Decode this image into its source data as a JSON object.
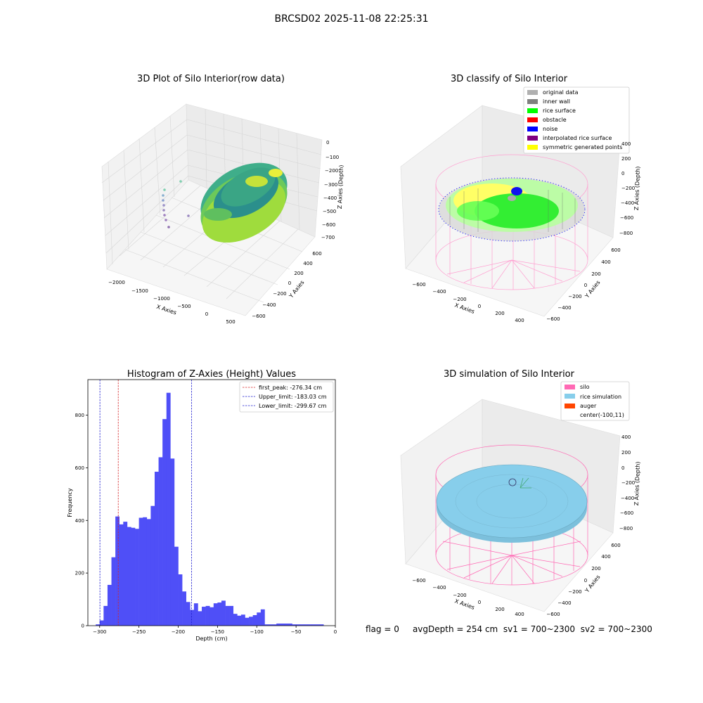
{
  "suptitle": "BRCSD02 2025-11-08 22:25:31",
  "status": {
    "flag": "flag = 0",
    "avg": "avgDepth = 254 cm",
    "sv1": "sv1 = 700~2300",
    "sv2": "sv2 = 700~2300"
  },
  "colors": {
    "bar": "#4f4ff7",
    "first_peak_line": "#d62728",
    "limit_line": "#1f1fd0",
    "silo": "#ff69b4",
    "rice_sim": "#87ceeb",
    "auger": "#ff4500",
    "rice_surface": "#00ff00",
    "noise": "#0000ff",
    "sym_points": "#ffff00",
    "inner_wall": "#808080",
    "original": "#b0b0b0",
    "obstacle": "#ff0000",
    "interp": "#800080"
  },
  "chart_data": [
    {
      "type": "scatter",
      "subtype": "3d",
      "title": "3D Plot of Silo Interior(row data)",
      "xlabel": "X Axies",
      "ylabel": "Y Axies",
      "zlabel": "Z Axies (Depth)",
      "x_ticks": [
        "−2000",
        "−1500",
        "−1000",
        "−500",
        "0",
        "500"
      ],
      "y_ticks": [
        "−600",
        "−400",
        "−200",
        "0",
        "200",
        "400",
        "600"
      ],
      "z_ticks": [
        "0",
        "−100",
        "−200",
        "−300",
        "−400",
        "−500",
        "−600",
        "−700"
      ]
    },
    {
      "type": "scatter",
      "subtype": "3d",
      "title": "3D classify of Silo Interior",
      "xlabel": "X Axies",
      "ylabel": "Y Axies",
      "zlabel": "Z Axies (Depth)",
      "x_ticks": [
        "−600",
        "−400",
        "−200",
        "0",
        "200",
        "400"
      ],
      "y_ticks": [
        "−600",
        "−400",
        "−200",
        "0",
        "200",
        "400",
        "600"
      ],
      "z_ticks": [
        "400",
        "200",
        "0",
        "−200",
        "−400",
        "−600",
        "−800"
      ],
      "legend": [
        "original data",
        "inner wall",
        "rice surface",
        "obstacle",
        "noise",
        "interpolated rice surface",
        "symmetric generated points"
      ],
      "legend_position": "top-right"
    },
    {
      "type": "bar",
      "subtype": "histogram",
      "title": "Histogram of Z-Axies (Height) Values",
      "xlabel": "Depth (cm)",
      "ylabel": "Frequency",
      "xlim": [
        -315,
        0
      ],
      "ylim": [
        0,
        935
      ],
      "x_ticks": [
        -300,
        -250,
        -200,
        -150,
        -100,
        -50,
        0
      ],
      "x_tick_labels": [
        "−300",
        "−250",
        "−200",
        "−150",
        "−100",
        "−50",
        "0"
      ],
      "y_ticks": [
        0,
        200,
        400,
        600,
        800
      ],
      "y_tick_labels": [
        "0",
        "200",
        "400",
        "600",
        "800"
      ],
      "bins": [
        [
          -305,
          -300,
          5
        ],
        [
          -300,
          -295,
          20
        ],
        [
          -295,
          -290,
          75
        ],
        [
          -290,
          -285,
          155
        ],
        [
          -285,
          -280,
          260
        ],
        [
          -280,
          -275,
          415
        ],
        [
          -275,
          -270,
          385
        ],
        [
          -270,
          -265,
          395
        ],
        [
          -265,
          -260,
          375
        ],
        [
          -260,
          -255,
          372
        ],
        [
          -255,
          -250,
          368
        ],
        [
          -250,
          -245,
          410
        ],
        [
          -245,
          -240,
          412
        ],
        [
          -240,
          -235,
          405
        ],
        [
          -235,
          -230,
          455
        ],
        [
          -230,
          -225,
          585
        ],
        [
          -225,
          -220,
          640
        ],
        [
          -220,
          -215,
          785
        ],
        [
          -215,
          -210,
          885
        ],
        [
          -210,
          -205,
          635
        ],
        [
          -205,
          -200,
          300
        ],
        [
          -200,
          -195,
          195
        ],
        [
          -195,
          -190,
          130
        ],
        [
          -190,
          -185,
          90
        ],
        [
          -185,
          -180,
          60
        ],
        [
          -180,
          -175,
          85
        ],
        [
          -175,
          -170,
          55
        ],
        [
          -170,
          -165,
          72
        ],
        [
          -165,
          -160,
          75
        ],
        [
          -160,
          -155,
          70
        ],
        [
          -155,
          -150,
          85
        ],
        [
          -150,
          -145,
          88
        ],
        [
          -145,
          -140,
          95
        ],
        [
          -140,
          -135,
          75
        ],
        [
          -135,
          -130,
          75
        ],
        [
          -130,
          -125,
          45
        ],
        [
          -125,
          -120,
          38
        ],
        [
          -120,
          -115,
          42
        ],
        [
          -115,
          -110,
          30
        ],
        [
          -110,
          -105,
          34
        ],
        [
          -105,
          -100,
          40
        ],
        [
          -100,
          -95,
          50
        ],
        [
          -95,
          -90,
          62
        ],
        [
          -90,
          -85,
          5
        ],
        [
          -85,
          -80,
          5
        ],
        [
          -80,
          -75,
          5
        ],
        [
          -75,
          -70,
          8
        ],
        [
          -70,
          -65,
          8
        ],
        [
          -65,
          -60,
          8
        ],
        [
          -60,
          -55,
          8
        ],
        [
          -55,
          -50,
          5
        ],
        [
          -50,
          -45,
          5
        ],
        [
          -45,
          -40,
          5
        ],
        [
          -40,
          -35,
          5
        ],
        [
          -35,
          -30,
          5
        ],
        [
          -30,
          -25,
          5
        ],
        [
          -25,
          -20,
          5
        ],
        [
          -20,
          -15,
          5
        ]
      ],
      "vlines": [
        {
          "x": -276.34,
          "label": "first_peak: -276.34 cm",
          "style": "red-dashed"
        },
        {
          "x": -183.03,
          "label": "Upper_limit: -183.03 cm",
          "style": "blue-dashed"
        },
        {
          "x": -299.67,
          "label": "Lower_limit: -299.67 cm",
          "style": "blue-dashed"
        }
      ],
      "legend_position": "top-right"
    },
    {
      "type": "scatter",
      "subtype": "3d",
      "title": "3D simulation of Silo Interior",
      "xlabel": "X Axies",
      "ylabel": "Y Axies",
      "zlabel": "Z Axies (Depth)",
      "x_ticks": [
        "−600",
        "−400",
        "−200",
        "0",
        "200",
        "400"
      ],
      "y_ticks": [
        "−600",
        "−400",
        "−200",
        "0",
        "200",
        "400",
        "600"
      ],
      "z_ticks": [
        "400",
        "200",
        "0",
        "−200",
        "−400",
        "−600",
        "−800"
      ],
      "legend": [
        "silo",
        "rice simulation",
        "auger",
        "center(-100,11)"
      ],
      "legend_position": "top-right"
    }
  ]
}
